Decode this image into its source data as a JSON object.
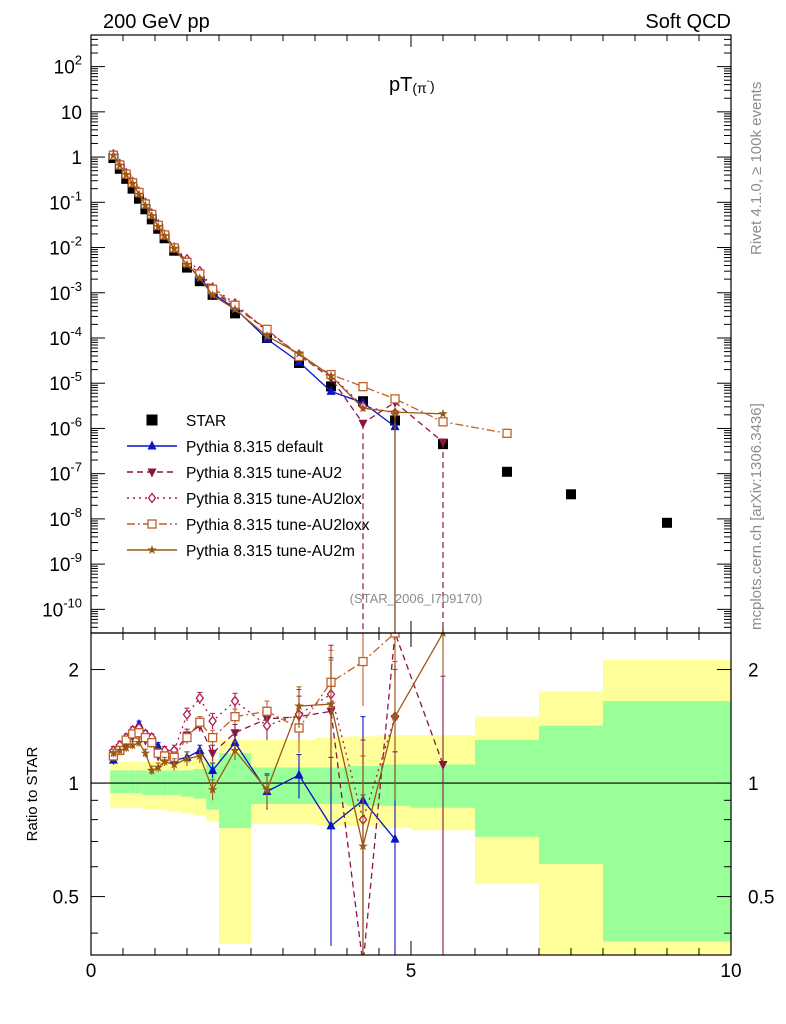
{
  "header": {
    "left": "200 GeV pp",
    "right": "Soft QCD",
    "title_main": "pT",
    "title_paren": "(π",
    "title_sup": "-",
    "title_close": ")",
    "side_top": "Rivet 4.1.0, ≥ 100k events",
    "side_bottom": "mcplots.cern.ch [arXiv:1306.3436]",
    "analysis": "(STAR_2006_I709170)",
    "ratio_ylabel": "Ratio to STAR"
  },
  "colors": {
    "star": "#000000",
    "default": "#0a14c8",
    "au2": "#8c1444",
    "au2lox": "#b01a4a",
    "au2loxx": "#c0602a",
    "au2m": "#9a5a14",
    "band_inner": "#99ff99",
    "band_outer": "#ffff99"
  },
  "chart_data": [
    {
      "type": "scatter",
      "name": "main",
      "xlim": [
        0,
        10
      ],
      "ylog": true,
      "ylim": [
        3e-11,
        500
      ],
      "y_ticks": [
        {
          "v": 1e-10,
          "base": "10",
          "exp": "-10"
        },
        {
          "v": 1e-09,
          "base": "10",
          "exp": "-9"
        },
        {
          "v": 1e-08,
          "base": "10",
          "exp": "-8"
        },
        {
          "v": 1e-07,
          "base": "10",
          "exp": "-7"
        },
        {
          "v": 1e-06,
          "base": "10",
          "exp": "-6"
        },
        {
          "v": 1e-05,
          "base": "10",
          "exp": "-5"
        },
        {
          "v": 0.0001,
          "base": "10",
          "exp": "-4"
        },
        {
          "v": 0.001,
          "base": "10",
          "exp": "-3"
        },
        {
          "v": 0.01,
          "base": "10",
          "exp": "-2"
        },
        {
          "v": 0.1,
          "base": "10",
          "exp": "-1"
        },
        {
          "v": 1,
          "base": "1",
          "exp": ""
        },
        {
          "v": 10,
          "base": "10",
          "exp": ""
        },
        {
          "v": 100,
          "base": "10",
          "exp": "2"
        }
      ],
      "series": [
        {
          "name": "STAR",
          "key": "star",
          "marker": "square",
          "x": [
            0.35,
            0.45,
            0.55,
            0.65,
            0.75,
            0.85,
            0.95,
            1.05,
            1.15,
            1.3,
            1.5,
            1.7,
            1.9,
            2.25,
            2.75,
            3.25,
            3.75,
            4.25,
            4.75,
            5.5,
            6.5,
            7.5,
            9.0
          ],
          "y": [
            0.95,
            0.55,
            0.33,
            0.2,
            0.12,
            0.07,
            0.042,
            0.026,
            0.016,
            0.0085,
            0.0036,
            0.0018,
            0.0009,
            0.00035,
            0.0001,
            2.8e-05,
            8.5e-06,
            4e-06,
            1.5e-06,
            4.5e-07,
            1.1e-07,
            3.5e-08,
            8.2e-09
          ]
        },
        {
          "name": "Pythia 8.315 default",
          "key": "default",
          "marker": "triangle-up",
          "dash": "",
          "x": [
            0.35,
            0.45,
            0.55,
            0.65,
            0.75,
            0.85,
            0.95,
            1.05,
            1.15,
            1.3,
            1.5,
            1.7,
            1.9,
            2.25,
            2.75,
            3.25,
            3.75,
            4.25,
            4.75
          ],
          "y": [
            1.1,
            0.68,
            0.43,
            0.27,
            0.17,
            0.095,
            0.056,
            0.033,
            0.019,
            0.0098,
            0.0042,
            0.0022,
            0.00097,
            0.00045,
            9.5e-05,
            2.95e-05,
            6.6e-06,
            3.7e-06,
            1.1e-06
          ]
        },
        {
          "name": "Pythia 8.315 tune-AU2",
          "key": "au2",
          "marker": "triangle-down",
          "dash": "6,4",
          "x": [
            0.35,
            0.45,
            0.55,
            0.65,
            0.75,
            0.85,
            0.95,
            1.05,
            1.15,
            1.3,
            1.5,
            1.7,
            1.9,
            2.25,
            2.75,
            3.25,
            3.75,
            4.25,
            4.75,
            5.5
          ],
          "y": [
            1.15,
            0.68,
            0.42,
            0.27,
            0.16,
            0.092,
            0.054,
            0.03,
            0.019,
            0.01,
            0.0049,
            0.0025,
            0.0011,
            0.00049,
            0.00015,
            4.2e-05,
            1.3e-05,
            1.3e-06,
            3.8e-06,
            5e-07
          ]
        },
        {
          "name": "Pythia 8.315 tune-AU2lox",
          "key": "au2lox",
          "marker": "diamond-open",
          "dash": "2,4",
          "x": [
            0.35,
            0.45,
            0.55,
            0.65,
            0.75,
            0.85,
            0.95,
            1.05,
            1.15,
            1.3,
            1.5,
            1.7,
            1.9,
            2.25,
            2.75,
            3.25,
            3.75,
            4.25,
            4.75
          ],
          "y": [
            1.15,
            0.7,
            0.44,
            0.28,
            0.17,
            0.098,
            0.056,
            0.031,
            0.019,
            0.01,
            0.0055,
            0.003,
            0.0013,
            0.00058,
            0.00014,
            4.3e-05,
            1.5e-05,
            3.1e-06,
            2.2e-06
          ]
        },
        {
          "name": "Pythia 8.315 tune-AU2loxx",
          "key": "au2loxx",
          "marker": "square-open",
          "dash": "8,3,2,3",
          "x": [
            0.35,
            0.45,
            0.55,
            0.65,
            0.75,
            0.85,
            0.95,
            1.05,
            1.15,
            1.3,
            1.5,
            1.7,
            1.9,
            2.25,
            2.75,
            3.25,
            3.75,
            4.25,
            4.75,
            5.5,
            6.5
          ],
          "y": [
            1.1,
            0.67,
            0.42,
            0.27,
            0.165,
            0.092,
            0.054,
            0.031,
            0.019,
            0.0098,
            0.0047,
            0.0026,
            0.0012,
            0.00053,
            0.000155,
            3.9e-05,
            1.55e-05,
            8.4e-06,
            4.5e-06,
            1.4e-06,
            7.8e-07
          ]
        },
        {
          "name": "Pythia 8.315 tune-AU2m",
          "key": "au2m",
          "marker": "star",
          "dash": "",
          "x": [
            0.35,
            0.45,
            0.55,
            0.65,
            0.75,
            0.85,
            0.95,
            1.05,
            1.15,
            1.3,
            1.5,
            1.7,
            1.9,
            2.25,
            2.75,
            3.25,
            3.75,
            4.25,
            4.75,
            5.5
          ],
          "y": [
            1.1,
            0.66,
            0.41,
            0.26,
            0.15,
            0.085,
            0.05,
            0.029,
            0.018,
            0.0095,
            0.0042,
            0.0021,
            0.00088,
            0.00043,
            0.00011,
            4.5e-05,
            1.45e-05,
            2.8e-06,
            2.3e-06,
            2.1e-06
          ]
        }
      ]
    },
    {
      "type": "scatter",
      "name": "ratio",
      "xlim": [
        0,
        10
      ],
      "ylog": true,
      "ylim": [
        0.35,
        2.5
      ],
      "y_ticks": [
        {
          "v": 0.5,
          "label": "0.5"
        },
        {
          "v": 1,
          "label": "1"
        },
        {
          "v": 2,
          "label": "2"
        }
      ],
      "x_ticks": [
        {
          "v": 0,
          "label": "0"
        },
        {
          "v": 5,
          "label": "5"
        },
        {
          "v": 10,
          "label": "10"
        }
      ],
      "bands": [
        {
          "x0": 0.3,
          "x1": 0.4,
          "inner": [
            0.94,
            1.08
          ],
          "outer": [
            0.86,
            1.14
          ]
        },
        {
          "x0": 0.4,
          "x1": 0.5,
          "inner": [
            0.94,
            1.08
          ],
          "outer": [
            0.86,
            1.14
          ]
        },
        {
          "x0": 0.5,
          "x1": 0.6,
          "inner": [
            0.94,
            1.08
          ],
          "outer": [
            0.86,
            1.14
          ]
        },
        {
          "x0": 0.6,
          "x1": 0.7,
          "inner": [
            0.94,
            1.08
          ],
          "outer": [
            0.86,
            1.14
          ]
        },
        {
          "x0": 0.7,
          "x1": 0.8,
          "inner": [
            0.94,
            1.08
          ],
          "outer": [
            0.86,
            1.14
          ]
        },
        {
          "x0": 0.8,
          "x1": 0.9,
          "inner": [
            0.93,
            1.08
          ],
          "outer": [
            0.85,
            1.14
          ]
        },
        {
          "x0": 0.9,
          "x1": 1.0,
          "inner": [
            0.93,
            1.08
          ],
          "outer": [
            0.85,
            1.14
          ]
        },
        {
          "x0": 1.0,
          "x1": 1.1,
          "inner": [
            0.93,
            1.08
          ],
          "outer": [
            0.85,
            1.14
          ]
        },
        {
          "x0": 1.1,
          "x1": 1.2,
          "inner": [
            0.93,
            1.08
          ],
          "outer": [
            0.85,
            1.14
          ]
        },
        {
          "x0": 1.2,
          "x1": 1.4,
          "inner": [
            0.93,
            1.08
          ],
          "outer": [
            0.84,
            1.15
          ]
        },
        {
          "x0": 1.4,
          "x1": 1.6,
          "inner": [
            0.92,
            1.08
          ],
          "outer": [
            0.83,
            1.16
          ]
        },
        {
          "x0": 1.6,
          "x1": 1.8,
          "inner": [
            0.91,
            1.09
          ],
          "outer": [
            0.82,
            1.18
          ]
        },
        {
          "x0": 1.8,
          "x1": 2.0,
          "inner": [
            0.85,
            1.12
          ],
          "outer": [
            0.79,
            1.16
          ]
        },
        {
          "x0": 2.0,
          "x1": 2.5,
          "inner": [
            0.76,
            1.2
          ],
          "outer": [
            0.375,
            1.3
          ]
        },
        {
          "x0": 2.5,
          "x1": 3.0,
          "inner": [
            0.88,
            1.1
          ],
          "outer": [
            0.78,
            1.3
          ]
        },
        {
          "x0": 3.0,
          "x1": 3.5,
          "inner": [
            0.88,
            1.1
          ],
          "outer": [
            0.78,
            1.3
          ]
        },
        {
          "x0": 3.5,
          "x1": 4.0,
          "inner": [
            0.88,
            1.1
          ],
          "outer": [
            0.77,
            1.32
          ]
        },
        {
          "x0": 4.0,
          "x1": 4.5,
          "inner": [
            0.87,
            1.11
          ],
          "outer": [
            0.77,
            1.33
          ]
        },
        {
          "x0": 4.5,
          "x1": 5.0,
          "inner": [
            0.87,
            1.12
          ],
          "outer": [
            0.76,
            1.34
          ]
        },
        {
          "x0": 5.0,
          "x1": 6.0,
          "inner": [
            0.86,
            1.12
          ],
          "outer": [
            0.75,
            1.34
          ]
        },
        {
          "x0": 6.0,
          "x1": 7.0,
          "inner": [
            0.72,
            1.3
          ],
          "outer": [
            0.54,
            1.5
          ]
        },
        {
          "x0": 7.0,
          "x1": 8.0,
          "inner": [
            0.61,
            1.42
          ],
          "outer": [
            0.35,
            1.75
          ]
        },
        {
          "x0": 8.0,
          "x1": 10.0,
          "inner": [
            0.38,
            1.65
          ],
          "outer": [
            0.35,
            2.12
          ]
        }
      ],
      "series": [
        {
          "key": "default",
          "marker": "triangle-up",
          "dash": "",
          "x": [
            0.35,
            0.45,
            0.55,
            0.65,
            0.75,
            0.85,
            0.95,
            1.05,
            1.15,
            1.3,
            1.5,
            1.7,
            1.9,
            2.25,
            2.75,
            3.25,
            3.75,
            4.25,
            4.75
          ],
          "y": [
            1.15,
            1.22,
            1.3,
            1.34,
            1.43,
            1.34,
            1.32,
            1.25,
            1.18,
            1.15,
            1.17,
            1.22,
            1.08,
            1.28,
            0.95,
            1.05,
            0.77,
            0.9,
            0.71
          ],
          "err": [
            0.03,
            0.03,
            0.03,
            0.03,
            0.03,
            0.03,
            0.03,
            0.03,
            0.03,
            0.04,
            0.04,
            0.04,
            0.05,
            0.06,
            0.1,
            0.14,
            0.4,
            0.6,
            0.5
          ]
        },
        {
          "key": "au2",
          "marker": "triangle-down",
          "dash": "6,4",
          "x": [
            0.35,
            0.45,
            0.55,
            0.65,
            0.75,
            0.85,
            0.95,
            1.05,
            1.15,
            1.3,
            1.5,
            1.7,
            1.9,
            2.25,
            2.75,
            3.25,
            3.75,
            4.25,
            4.75,
            5.5
          ],
          "y": [
            1.2,
            1.24,
            1.26,
            1.33,
            1.35,
            1.3,
            1.28,
            1.18,
            1.2,
            1.2,
            1.34,
            1.42,
            1.2,
            1.36,
            1.48,
            1.5,
            1.55,
            0.33,
            2.5,
            1.12
          ],
          "err": [
            0.03,
            0.03,
            0.03,
            0.03,
            0.03,
            0.03,
            0.03,
            0.03,
            0.03,
            0.04,
            0.05,
            0.05,
            0.06,
            0.07,
            0.1,
            0.2,
            0.6,
            0.6,
            0.6,
            0.8
          ]
        },
        {
          "key": "au2lox",
          "marker": "diamond-open",
          "dash": "2,4",
          "x": [
            0.35,
            0.45,
            0.55,
            0.65,
            0.75,
            0.85,
            0.95,
            1.05,
            1.15,
            1.3,
            1.5,
            1.7,
            1.9,
            2.25,
            2.75,
            3.25,
            3.75,
            4.25,
            4.75
          ],
          "y": [
            1.22,
            1.26,
            1.32,
            1.38,
            1.4,
            1.35,
            1.32,
            1.2,
            1.22,
            1.22,
            1.52,
            1.68,
            1.46,
            1.65,
            1.42,
            1.52,
            1.72,
            0.8,
            1.5
          ],
          "err": [
            0.03,
            0.03,
            0.03,
            0.03,
            0.03,
            0.03,
            0.03,
            0.03,
            0.03,
            0.04,
            0.06,
            0.06,
            0.07,
            0.08,
            0.12,
            0.25,
            0.6,
            0.5,
            0.5
          ]
        },
        {
          "key": "au2loxx",
          "marker": "square-open",
          "dash": "8,3,2,3",
          "x": [
            0.35,
            0.45,
            0.55,
            0.65,
            0.75,
            0.85,
            0.95,
            1.05,
            1.15,
            1.3,
            1.5,
            1.7,
            1.9,
            2.25,
            2.75,
            3.25,
            3.75,
            4.25,
            4.75
          ],
          "y": [
            1.18,
            1.22,
            1.3,
            1.35,
            1.36,
            1.32,
            1.28,
            1.2,
            1.18,
            1.17,
            1.32,
            1.45,
            1.32,
            1.5,
            1.55,
            1.4,
            1.85,
            2.1,
            2.5
          ],
          "err": [
            0.03,
            0.03,
            0.03,
            0.03,
            0.03,
            0.03,
            0.03,
            0.03,
            0.03,
            0.04,
            0.05,
            0.05,
            0.06,
            0.07,
            0.1,
            0.2,
            0.4,
            0.5,
            0.6
          ]
        },
        {
          "key": "au2m",
          "marker": "star",
          "dash": "",
          "x": [
            0.35,
            0.45,
            0.55,
            0.65,
            0.75,
            0.85,
            0.95,
            1.05,
            1.15,
            1.3,
            1.5,
            1.7,
            1.9,
            2.25,
            2.75,
            3.25,
            3.75,
            4.25,
            4.75,
            5.5
          ],
          "y": [
            1.2,
            1.22,
            1.24,
            1.26,
            1.28,
            1.2,
            1.08,
            1.1,
            1.14,
            1.12,
            1.16,
            1.18,
            0.96,
            1.22,
            0.96,
            1.6,
            1.62,
            0.68,
            1.5,
            2.5
          ],
          "err": [
            0.03,
            0.03,
            0.03,
            0.03,
            0.03,
            0.03,
            0.03,
            0.03,
            0.03,
            0.04,
            0.05,
            0.05,
            0.06,
            0.07,
            0.1,
            0.2,
            0.5,
            0.5,
            0.6,
            0.6
          ]
        }
      ]
    }
  ]
}
